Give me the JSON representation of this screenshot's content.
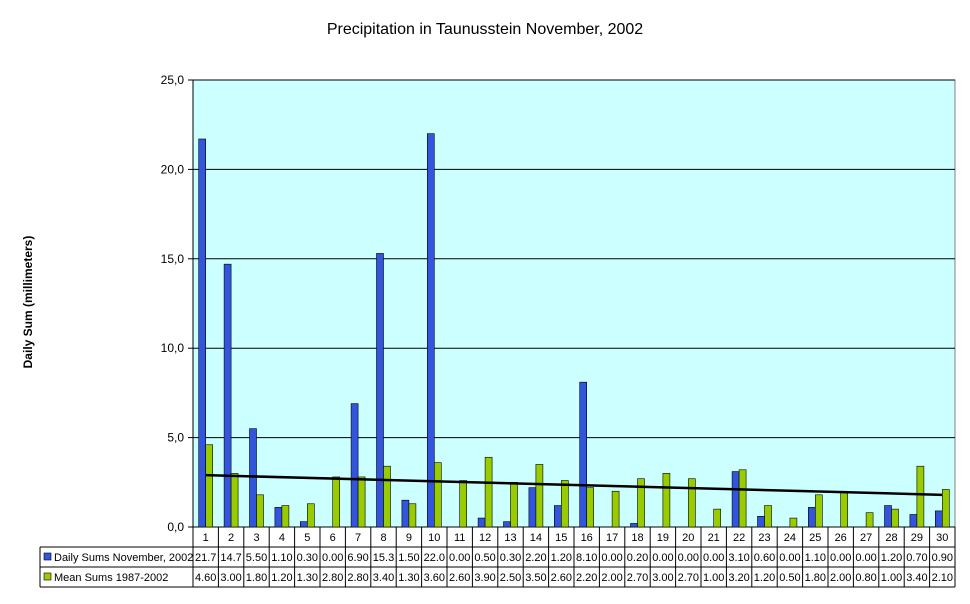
{
  "chart_data": {
    "type": "bar",
    "title": "Precipitation in Taunusstein November, 2002",
    "xlabel": "",
    "ylabel": "Daily Sum (millimeters)",
    "ylim": [
      0,
      25
    ],
    "yticks": [
      "0,0",
      "5,0",
      "10,0",
      "15,0",
      "20,0",
      "25,0"
    ],
    "grid": true,
    "categories": [
      "1",
      "2",
      "3",
      "4",
      "5",
      "6",
      "7",
      "8",
      "9",
      "10",
      "11",
      "12",
      "13",
      "14",
      "15",
      "16",
      "17",
      "18",
      "19",
      "20",
      "21",
      "22",
      "23",
      "24",
      "25",
      "26",
      "27",
      "28",
      "29",
      "30"
    ],
    "series": [
      {
        "name": "Daily Sums November, 2002",
        "color": "#3355dd",
        "values": [
          21.7,
          14.7,
          5.5,
          1.1,
          0.3,
          0.0,
          6.9,
          15.3,
          1.5,
          22.0,
          0.0,
          0.5,
          0.3,
          2.2,
          1.2,
          8.1,
          0.0,
          0.2,
          0.0,
          0.0,
          0.0,
          3.1,
          0.6,
          0.0,
          1.1,
          0.0,
          0.0,
          1.2,
          0.7,
          0.9
        ],
        "labels": [
          "21.7",
          "14.7",
          "5.50",
          "1.10",
          "0.30",
          "0.00",
          "6.90",
          "15.3",
          "1.50",
          "22.0",
          "0.00",
          "0.50",
          "0.30",
          "2.20",
          "1.20",
          "8.10",
          "0.00",
          "0.20",
          "0.00",
          "0.00",
          "0.00",
          "3.10",
          "0.60",
          "0.00",
          "1.10",
          "0.00",
          "0.00",
          "1.20",
          "0.70",
          "0.90"
        ]
      },
      {
        "name": "Mean Sums 1987-2002",
        "color": "#99cc00",
        "values": [
          4.6,
          3.0,
          1.8,
          1.2,
          1.3,
          2.8,
          2.8,
          3.4,
          1.3,
          3.6,
          2.6,
          3.9,
          2.5,
          3.5,
          2.6,
          2.2,
          2.0,
          2.7,
          3.0,
          2.7,
          1.0,
          3.2,
          1.2,
          0.5,
          1.8,
          2.0,
          0.8,
          1.0,
          3.4,
          2.1
        ],
        "labels": [
          "4.60",
          "3.00",
          "1.80",
          "1.20",
          "1.30",
          "2.80",
          "2.80",
          "3.40",
          "1.30",
          "3.60",
          "2.60",
          "3.90",
          "2.50",
          "3.50",
          "2.60",
          "2.20",
          "2.00",
          "2.70",
          "3.00",
          "2.70",
          "1.00",
          "3.20",
          "1.20",
          "0.50",
          "1.80",
          "2.00",
          "0.80",
          "1.00",
          "3.40",
          "2.10"
        ]
      }
    ],
    "trendline": {
      "series": "Daily Sums November, 2002",
      "type": "linear",
      "start": 2.9,
      "end": 1.8,
      "color": "#000000"
    },
    "plot_background": "#ccffff",
    "legend": "data-table-bottom"
  }
}
